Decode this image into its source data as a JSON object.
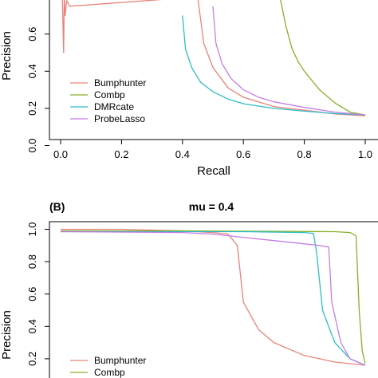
{
  "colors": {
    "Bumphunter": "#e8837a",
    "Combp": "#86b02a",
    "DMRcate": "#2cbec6",
    "ProbeLasso": "#c57ee8"
  },
  "chart_data": [
    {
      "type": "line",
      "panel_label": "",
      "title": "",
      "xlabel": "Recall",
      "ylabel": "Precision",
      "xlim": [
        0,
        1
      ],
      "ylim": [
        0,
        1
      ],
      "xticks": [
        "0.0",
        "0.2",
        "0.4",
        "0.6",
        "0.8",
        "1.0"
      ],
      "yticks": [
        "0.0",
        "0.2",
        "0.4",
        "0.6"
      ],
      "legend": [
        "Bumphunter",
        "Combp",
        "DMRcate",
        "ProbeLasso"
      ],
      "legend_position": "bottom-left",
      "series": [
        {
          "name": "Bumphunter",
          "x": [
            0.005,
            0.01,
            0.012,
            0.015,
            0.02,
            0.03,
            0.45,
            0.47,
            0.5,
            0.55,
            0.6,
            0.7,
            0.8,
            0.9,
            1.0
          ],
          "y": [
            0.85,
            0.5,
            0.8,
            0.7,
            0.78,
            0.75,
            0.8,
            0.55,
            0.42,
            0.31,
            0.26,
            0.21,
            0.19,
            0.17,
            0.16
          ]
        },
        {
          "name": "Combp",
          "x": [
            0.72,
            0.74,
            0.76,
            0.78,
            0.8,
            0.85,
            0.9,
            0.95,
            1.0
          ],
          "y": [
            0.8,
            0.64,
            0.52,
            0.45,
            0.4,
            0.3,
            0.23,
            0.18,
            0.165
          ]
        },
        {
          "name": "DMRcate",
          "x": [
            0.4,
            0.41,
            0.43,
            0.46,
            0.5,
            0.55,
            0.6,
            0.7,
            0.8,
            0.9,
            1.0
          ],
          "y": [
            0.7,
            0.52,
            0.42,
            0.34,
            0.29,
            0.25,
            0.225,
            0.2,
            0.185,
            0.172,
            0.165
          ]
        },
        {
          "name": "ProbeLasso",
          "x": [
            0.5,
            0.51,
            0.53,
            0.56,
            0.6,
            0.65,
            0.7,
            0.8,
            0.9,
            1.0
          ],
          "y": [
            0.75,
            0.55,
            0.44,
            0.36,
            0.3,
            0.26,
            0.235,
            0.205,
            0.18,
            0.165
          ]
        }
      ]
    },
    {
      "type": "line",
      "panel_label": "(B)",
      "title": "mu = 0.4",
      "xlabel": "",
      "ylabel": "Precision",
      "xlim": [
        0,
        1
      ],
      "ylim": [
        0,
        1
      ],
      "yticks": [
        "0.2",
        "0.4",
        "0.6",
        "0.8",
        "1.0"
      ],
      "legend": [
        "Bumphunter",
        "Combp"
      ],
      "legend_position": "bottom-left",
      "series": [
        {
          "name": "Bumphunter",
          "x": [
            0.0,
            0.2,
            0.4,
            0.5,
            0.55,
            0.58,
            0.6,
            0.65,
            0.7,
            0.8,
            0.9,
            1.0
          ],
          "y": [
            1.0,
            1.0,
            0.99,
            0.98,
            0.97,
            0.9,
            0.55,
            0.38,
            0.3,
            0.22,
            0.18,
            0.16
          ]
        },
        {
          "name": "Combp",
          "x": [
            0.0,
            0.4,
            0.9,
            0.95,
            0.97,
            0.98,
            0.99,
            1.0
          ],
          "y": [
            0.99,
            0.99,
            0.985,
            0.98,
            0.96,
            0.5,
            0.25,
            0.17
          ]
        },
        {
          "name": "DMRcate",
          "x": [
            0.0,
            0.6,
            0.8,
            0.83,
            0.84,
            0.86,
            0.9,
            0.95,
            1.0
          ],
          "y": [
            0.985,
            0.985,
            0.98,
            0.975,
            0.86,
            0.5,
            0.3,
            0.2,
            0.16
          ]
        },
        {
          "name": "ProbeLasso",
          "x": [
            0.0,
            0.4,
            0.5,
            0.6,
            0.65,
            0.7,
            0.75,
            0.8,
            0.85,
            0.88,
            0.89,
            0.92,
            0.95,
            1.0
          ],
          "y": [
            0.985,
            0.98,
            0.97,
            0.95,
            0.94,
            0.93,
            0.92,
            0.91,
            0.9,
            0.89,
            0.55,
            0.3,
            0.2,
            0.16
          ]
        }
      ]
    }
  ]
}
